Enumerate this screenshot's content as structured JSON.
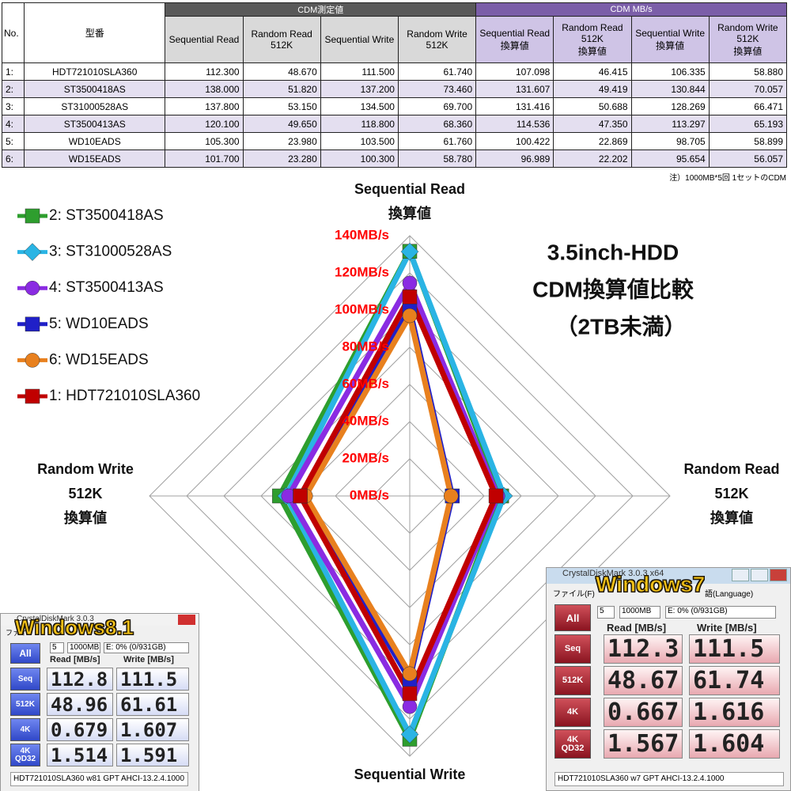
{
  "table": {
    "group_headers": [
      "CDM測定値",
      "CDM MB/s"
    ],
    "headers": [
      "No.",
      "型番",
      "Sequential Read",
      "Random Read\n512K",
      "Sequential Write",
      "Random Write\n512K",
      "Sequential Read\n換算値",
      "Random Read\n512K\n換算値",
      "Sequential Write\n換算値",
      "Random Write\n512K\n換算値"
    ],
    "rows": [
      [
        "1:",
        "HDT721010SLA360",
        "112.300",
        "48.670",
        "111.500",
        "61.740",
        "107.098",
        "46.415",
        "106.335",
        "58.880"
      ],
      [
        "2:",
        "ST3500418AS",
        "138.000",
        "51.820",
        "137.200",
        "73.460",
        "131.607",
        "49.419",
        "130.844",
        "70.057"
      ],
      [
        "3:",
        "ST31000528AS",
        "137.800",
        "53.150",
        "134.500",
        "69.700",
        "131.416",
        "50.688",
        "128.269",
        "66.471"
      ],
      [
        "4:",
        "ST3500413AS",
        "120.100",
        "49.650",
        "118.800",
        "68.360",
        "114.536",
        "47.350",
        "113.297",
        "65.193"
      ],
      [
        "5:",
        "WD10EADS",
        "105.300",
        "23.980",
        "103.500",
        "61.760",
        "100.422",
        "22.869",
        "98.705",
        "58.899"
      ],
      [
        "6:",
        "WD15EADS",
        "101.700",
        "23.280",
        "100.300",
        "58.780",
        "96.989",
        "22.202",
        "95.654",
        "56.057"
      ]
    ]
  },
  "note": "注）1000MB*5回 1セットのCDM",
  "chart_data": {
    "type": "radar",
    "title": [
      "3.5inch-HDD",
      "CDM換算値比較",
      "（2TB未満）"
    ],
    "categories": [
      [
        "Sequential Read",
        "換算値"
      ],
      [
        "Random Read",
        "512K",
        "換算値"
      ],
      [
        "Sequential Write"
      ],
      [
        "Random Write",
        "512K",
        "換算値"
      ]
    ],
    "ylim": [
      0,
      140
    ],
    "yticks": [
      {
        "value": 0,
        "label": "0MB/s"
      },
      {
        "value": 20,
        "label": "20MB/s"
      },
      {
        "value": 40,
        "label": "40MB/s"
      },
      {
        "value": 60,
        "label": "60MB/s"
      },
      {
        "value": 80,
        "label": "80MB/s"
      },
      {
        "value": 100,
        "label": "100MB/s"
      },
      {
        "value": 120,
        "label": "120MB/s"
      },
      {
        "value": 140,
        "label": "140MB/s"
      }
    ],
    "grid": true,
    "tick_color": "#ff0000",
    "legend": "top-left",
    "series": [
      {
        "name": "2: ST3500418AS",
        "color": "#2e9e2e",
        "marker": "square",
        "values": [
          131.607,
          49.419,
          130.844,
          70.057
        ]
      },
      {
        "name": "3: ST31000528AS",
        "color": "#2ab4e4",
        "marker": "diamond",
        "values": [
          131.416,
          50.688,
          128.269,
          66.471
        ]
      },
      {
        "name": "4: ST3500413AS",
        "color": "#8a2be2",
        "marker": "circle",
        "values": [
          114.536,
          47.35,
          113.297,
          65.193
        ]
      },
      {
        "name": "5: WD10EADS",
        "color": "#2020c8",
        "marker": "square",
        "values": [
          100.422,
          22.869,
          98.705,
          58.899
        ]
      },
      {
        "name": "6: WD15EADS",
        "color": "#e8801e",
        "marker": "circle",
        "values": [
          96.989,
          22.202,
          95.654,
          56.057
        ]
      },
      {
        "name": "1: HDT721010SLA360",
        "color": "#c00000",
        "marker": "square",
        "values": [
          107.098,
          46.415,
          106.335,
          58.88
        ]
      }
    ]
  },
  "screenshots": [
    {
      "badge": "Windows8.1",
      "window_title": "CrystalDiskMark 3.0.3",
      "menu": [
        "ファイ"
      ],
      "button": "All",
      "count": "5",
      "size": "1000MB",
      "drive": "E: 0% (0/931GB)",
      "col_headers": [
        "Read [MB/s]",
        "Write [MB/s]"
      ],
      "rows": [
        {
          "label": "Seq",
          "read": "112.8",
          "write": "111.5"
        },
        {
          "label": "512K",
          "read": "48.96",
          "write": "61.61"
        },
        {
          "label": "4K",
          "read": "0.679",
          "write": "1.607"
        },
        {
          "label": "4K\nQD32",
          "read": "1.514",
          "write": "1.591"
        }
      ],
      "footer": "HDT721010SLA360 w81 GPT AHCI-13.2.4.1000"
    },
    {
      "badge": "Windows7",
      "window_title": "CrystalDiskMark 3.0.3 x64",
      "menu": [
        "ファイル(F)",
        "語(Language)"
      ],
      "button": "All",
      "count": "5",
      "size": "1000MB",
      "drive": "E: 0% (0/931GB)",
      "col_headers": [
        "Read [MB/s]",
        "Write [MB/s]"
      ],
      "rows": [
        {
          "label": "Seq",
          "read": "112.3",
          "write": "111.5"
        },
        {
          "label": "512K",
          "read": "48.67",
          "write": "61.74"
        },
        {
          "label": "4K",
          "read": "0.667",
          "write": "1.616"
        },
        {
          "label": "4K\nQD32",
          "read": "1.567",
          "write": "1.604"
        }
      ],
      "footer": "HDT721010SLA360 w7 GPT AHCI-13.2.4.1000"
    }
  ]
}
